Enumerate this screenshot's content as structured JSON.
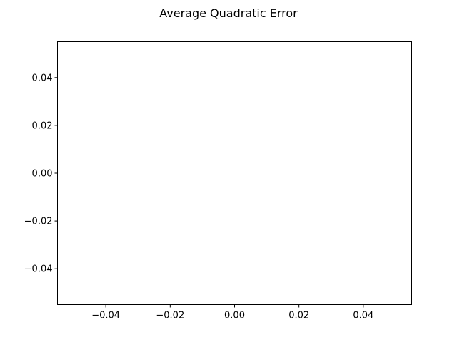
{
  "chart_data": {
    "type": "line",
    "title": "Average Quadratic Error",
    "xlabel": "",
    "ylabel": "",
    "series": [],
    "xlim": [
      -0.055,
      0.055
    ],
    "ylim": [
      -0.055,
      0.055
    ],
    "x_ticks": [
      -0.04,
      -0.02,
      0.0,
      0.02,
      0.04
    ],
    "x_tick_labels": [
      "−0.04",
      "−0.02",
      "0.00",
      "0.02",
      "0.04"
    ],
    "y_ticks": [
      -0.04,
      -0.02,
      0.0,
      0.02,
      0.04
    ],
    "y_tick_labels": [
      "−0.04",
      "−0.02",
      "0.00",
      "0.02",
      "0.04"
    ],
    "grid": false,
    "legend": "none"
  }
}
